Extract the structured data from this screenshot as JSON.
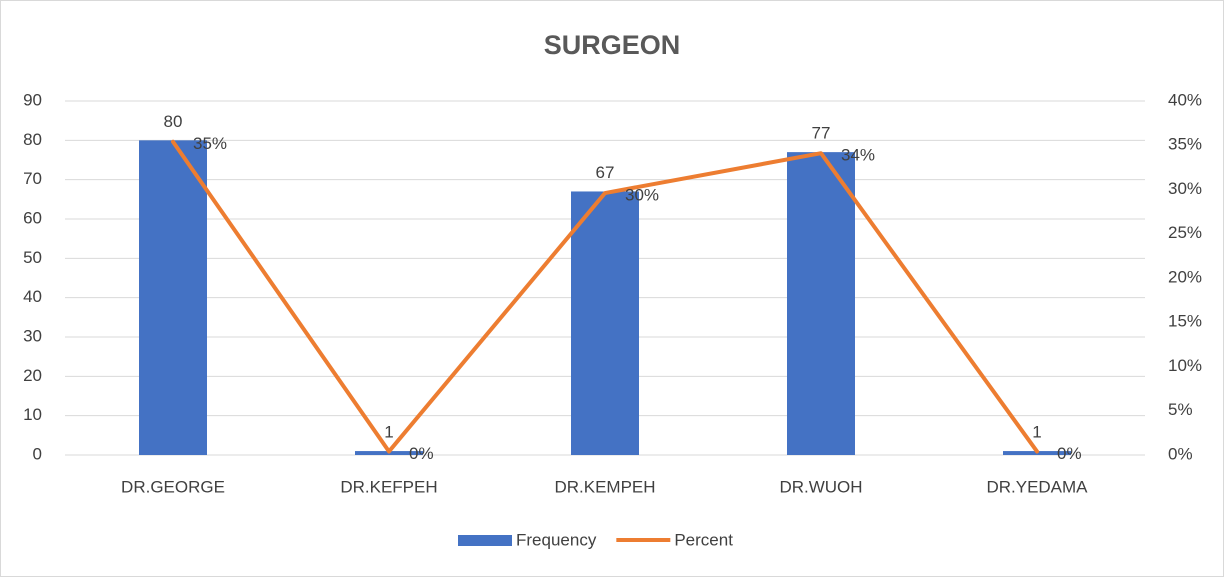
{
  "chart_data": {
    "type": "bar",
    "title": "SURGEON",
    "categories": [
      "DR.GEORGE",
      "DR.KEFPEH",
      "DR.KEMPEH",
      "DR.WUOH",
      "DR.YEDAMA"
    ],
    "series": [
      {
        "name": "Frequency",
        "type": "bar",
        "color": "#4472c4",
        "values": [
          80,
          1,
          67,
          77,
          1
        ]
      },
      {
        "name": "Percent",
        "type": "line",
        "axis": "y2",
        "color": "#ed7d31",
        "values": [
          35.4,
          0.4,
          29.6,
          34.1,
          0.4
        ],
        "value_labels": [
          "35%",
          "0%",
          "30%",
          "34%",
          "0%"
        ]
      }
    ],
    "ylim": [
      0,
      90
    ],
    "yticks": [
      0,
      10,
      20,
      30,
      40,
      50,
      60,
      70,
      80,
      90
    ],
    "y2lim": [
      0,
      40
    ],
    "y2ticks": [
      {
        "value": 0,
        "label": "0%"
      },
      {
        "value": 5,
        "label": "5%"
      },
      {
        "value": 10,
        "label": "10%"
      },
      {
        "value": 15,
        "label": "15%"
      },
      {
        "value": 20,
        "label": "20%"
      },
      {
        "value": 25,
        "label": "25%"
      },
      {
        "value": 30,
        "label": "30%"
      },
      {
        "value": 35,
        "label": "35%"
      },
      {
        "value": 40,
        "label": "40%"
      }
    ],
    "grid": true,
    "legend": "bottom"
  }
}
